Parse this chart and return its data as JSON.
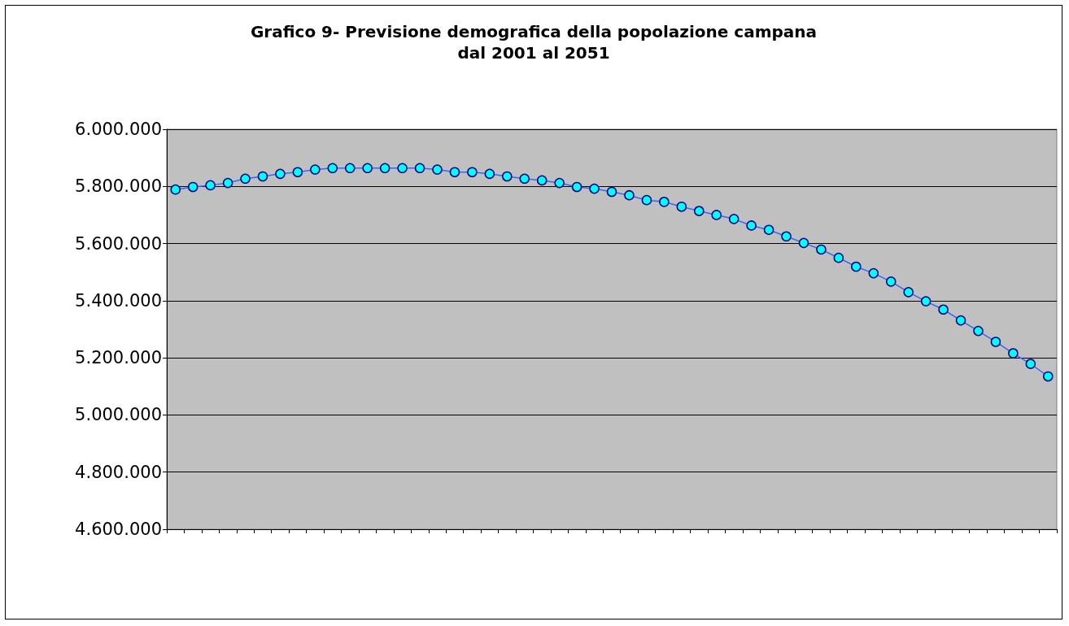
{
  "chart_data": {
    "type": "line",
    "title": "Grafico 9- Previsione demografica della popolazione campana\ndal 2001 al 2051",
    "categories": [
      null,
      null,
      null,
      null,
      null,
      null,
      null,
      null,
      null,
      null,
      null,
      null,
      null,
      null,
      null,
      null,
      null,
      null,
      null,
      null,
      null,
      null,
      null,
      null,
      null,
      null,
      null,
      null,
      null,
      null,
      null,
      null,
      null,
      null,
      null,
      null,
      null,
      null,
      null,
      null,
      null,
      null,
      null,
      null,
      null,
      null,
      null,
      null,
      null,
      null,
      null
    ],
    "series": [
      {
        "color": "#3366ff",
        "values": [
          5789000,
          5798000,
          5804000,
          5812000,
          5827000,
          5835000,
          5844000,
          5850000,
          5859000,
          5864000,
          5864000,
          5864000,
          5864000,
          5864000,
          5864000,
          5859000,
          5850000,
          5850000,
          5844000,
          5835000,
          5827000,
          5821000,
          5812000,
          5798000,
          5792000,
          5781000,
          5769000,
          5752000,
          5746000,
          5729000,
          5714000,
          5700000,
          5686000,
          5663000,
          5648000,
          5625000,
          5602000,
          5579000,
          5550000,
          5519000,
          5496000,
          5467000,
          5430000,
          5398000,
          5369000,
          5331000,
          5294000,
          5256000,
          5216000,
          5179000,
          5135000
        ]
      }
    ],
    "ylim": [
      4600000,
      6000000
    ],
    "yticks": [
      {
        "value": 4600000,
        "label": "4.600.000"
      },
      {
        "value": 4800000,
        "label": "4.800.000"
      },
      {
        "value": 5000000,
        "label": "5.000.000"
      },
      {
        "value": 5200000,
        "label": "5.200.000"
      },
      {
        "value": 5400000,
        "label": "5.400.000"
      },
      {
        "value": 5600000,
        "label": "5.600.000"
      },
      {
        "value": 5800000,
        "label": "5.800.000"
      },
      {
        "value": 6000000,
        "label": "6.000.000"
      }
    ],
    "grid": "y",
    "marker": "circle",
    "line_style": "solid"
  }
}
